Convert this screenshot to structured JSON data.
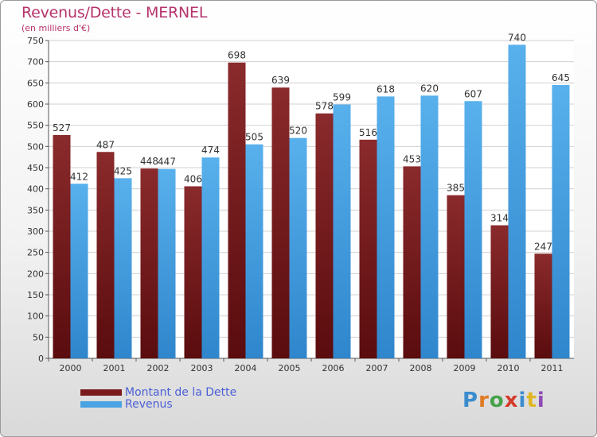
{
  "header": {
    "title": "Revenus/Dette - MERNEL",
    "subtitle": "(en milliers d'€)"
  },
  "legend": {
    "items": [
      {
        "label": "Montant de la Dette",
        "color": "#7a1a1d"
      },
      {
        "label": "Revenus",
        "color": "#4aa3e3"
      }
    ]
  },
  "logo": {
    "text": "Proxiti"
  },
  "chart_data": {
    "type": "bar",
    "categories": [
      "2000",
      "2001",
      "2002",
      "2003",
      "2004",
      "2005",
      "2006",
      "2007",
      "2008",
      "2009",
      "2010",
      "2011"
    ],
    "series": [
      {
        "name": "Montant de la Dette",
        "color": "#7a1a1d",
        "values": [
          527,
          487,
          448,
          406,
          698,
          639,
          578,
          516,
          453,
          385,
          314,
          247
        ]
      },
      {
        "name": "Revenus",
        "color": "#4aa3e3",
        "values": [
          412,
          425,
          447,
          474,
          505,
          520,
          599,
          618,
          620,
          607,
          740,
          645
        ]
      }
    ],
    "ylim": [
      0,
      750
    ],
    "ytick_step": 50,
    "grid": true,
    "legend_position": "bottom-left",
    "title": "Revenus/Dette - MERNEL",
    "xlabel": "",
    "ylabel": "(en milliers d'€)"
  }
}
